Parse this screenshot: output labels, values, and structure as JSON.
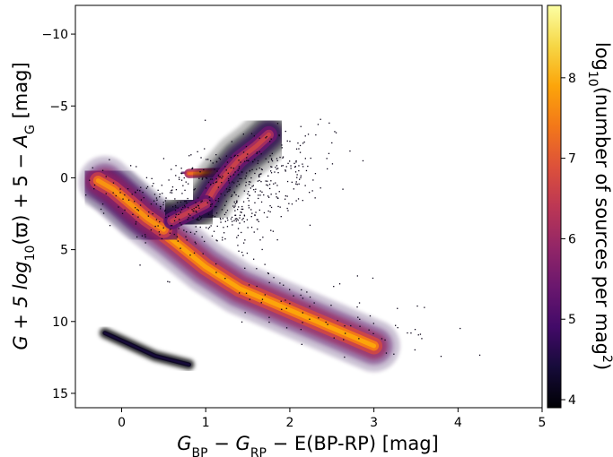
{
  "chart_data": {
    "type": "heatmap",
    "title": "",
    "xlabel": "G_BP − G_RP − E(BP-RP) [mag]",
    "xlabel_parts": {
      "main": "G",
      "sub1": "BP",
      "minus1": " − ",
      "main2": "G",
      "sub2": "RP",
      "rest": " − E(BP-RP) [mag]"
    },
    "ylabel": "G + 5 log10(ϖ) + 5 − A_G [mag]",
    "ylabel_parts": {
      "a": "G + 5 log",
      "a_sub": "10",
      "b": "(ϖ) + 5 − ",
      "c": "A",
      "c_sub": "G",
      "d": " [mag]"
    },
    "xlim": [
      -0.55,
      5.0
    ],
    "ylim": [
      16.0,
      -12.0
    ],
    "y_inverted": true,
    "xticks": [
      0,
      1,
      2,
      3,
      4,
      5
    ],
    "yticks": [
      -10,
      -5,
      0,
      5,
      10,
      15
    ],
    "colormap": "inferno",
    "colorbar": {
      "label": "log10(number of sources per mag²)",
      "label_parts": {
        "a": "log",
        "a_sub": "10",
        "b": "(number of sources per mag",
        "b_sup": "2",
        "c": ")"
      },
      "range": [
        3.9,
        8.9
      ],
      "ticks": [
        4,
        5,
        6,
        7,
        8
      ]
    },
    "features": [
      {
        "name": "main sequence",
        "points": [
          [
            -0.2,
            0.3
          ],
          [
            0.2,
            2.5
          ],
          [
            0.6,
            4.3
          ],
          [
            1.0,
            6.2
          ],
          [
            1.4,
            7.7
          ],
          [
            1.8,
            8.7
          ],
          [
            2.2,
            9.7
          ],
          [
            2.6,
            10.7
          ],
          [
            3.0,
            11.7
          ]
        ],
        "intensity": 7.9
      },
      {
        "name": "upper main sequence",
        "points": [
          [
            -0.28,
            0.2
          ],
          [
            -0.1,
            0.8
          ],
          [
            0.1,
            1.8
          ],
          [
            0.3,
            2.8
          ],
          [
            0.5,
            3.6
          ]
        ],
        "intensity": 7.7
      },
      {
        "name": "red clump",
        "points": [
          [
            0.8,
            -0.3
          ],
          [
            1.05,
            -0.35
          ],
          [
            1.25,
            -0.4
          ]
        ],
        "intensity": 7.3
      },
      {
        "name": "red giant branch",
        "points": [
          [
            1.0,
            1.8
          ],
          [
            1.1,
            0.8
          ],
          [
            1.25,
            -0.3
          ],
          [
            1.4,
            -1.3
          ],
          [
            1.6,
            -2.2
          ],
          [
            1.75,
            -3.0
          ]
        ],
        "intensity": 6.6
      },
      {
        "name": "subgiant branch",
        "points": [
          [
            0.6,
            3.0
          ],
          [
            0.8,
            2.4
          ],
          [
            1.0,
            1.8
          ]
        ],
        "intensity": 6.5
      },
      {
        "name": "white dwarf sequence",
        "points": [
          [
            -0.2,
            10.8
          ],
          [
            0.1,
            11.6
          ],
          [
            0.4,
            12.4
          ],
          [
            0.8,
            13.0
          ]
        ],
        "intensity": 4.4
      }
    ]
  }
}
